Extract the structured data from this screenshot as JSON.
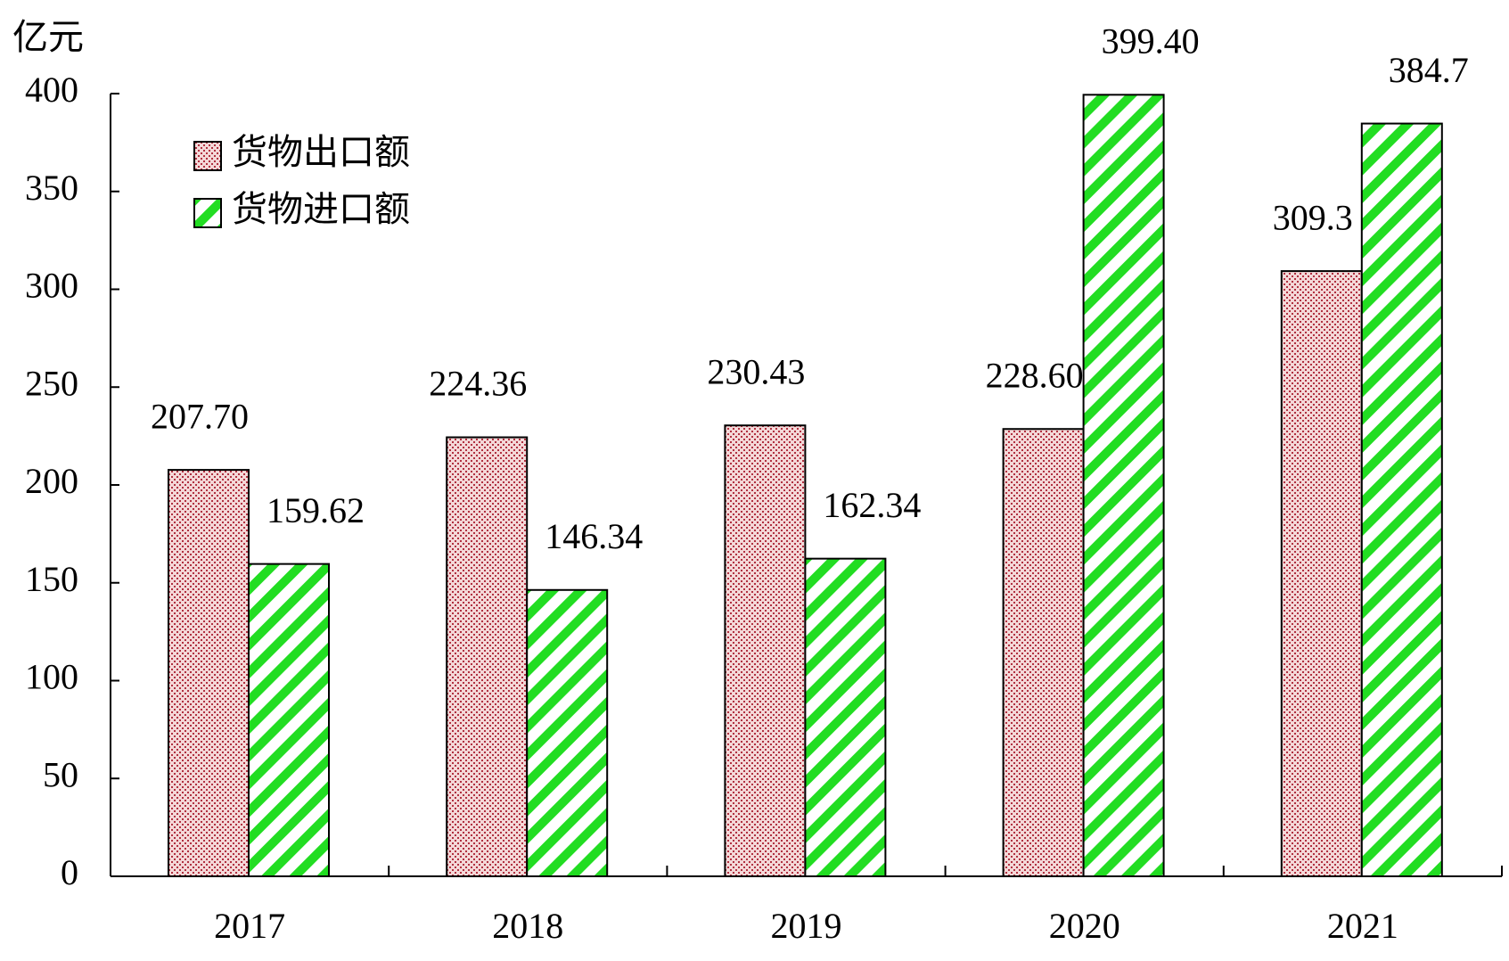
{
  "chart_data": {
    "type": "bar",
    "y_axis_label": "亿元",
    "categories": [
      "2017",
      "2018",
      "2019",
      "2020",
      "2021"
    ],
    "series": [
      {
        "name": "货物出口额",
        "color": "#b03040",
        "values": [
          207.7,
          224.36,
          230.43,
          228.6,
          309.3
        ],
        "value_labels": [
          "207.70",
          "224.36",
          "230.43",
          "228.60",
          "309.3"
        ]
      },
      {
        "name": "货物进口额",
        "color": "#22dd22",
        "values": [
          159.62,
          146.34,
          162.34,
          399.4,
          384.7
        ],
        "value_labels": [
          "159.62",
          "146.34",
          "162.34",
          "399.40",
          "384.7"
        ]
      }
    ],
    "ylim": [
      0,
      400
    ],
    "yticks": [
      0,
      50,
      100,
      150,
      200,
      250,
      300,
      350,
      400
    ],
    "grid": false,
    "legend": "upper left"
  }
}
